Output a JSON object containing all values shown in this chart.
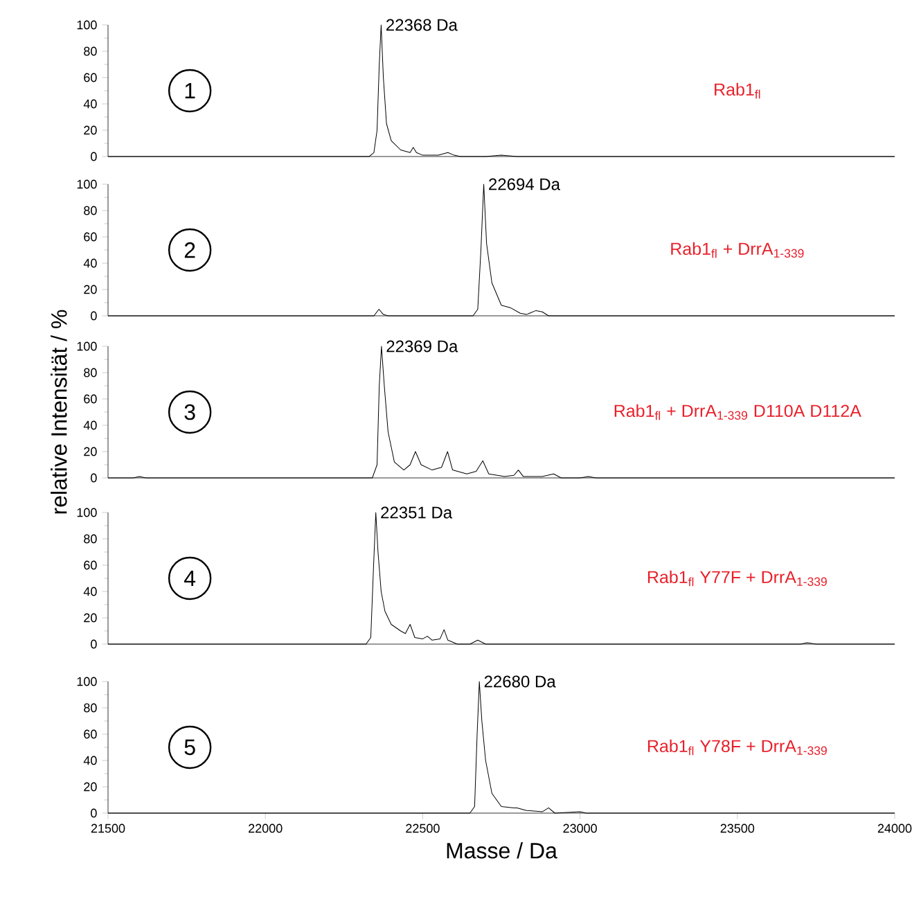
{
  "chart_data": [
    {
      "type": "line",
      "xlim": [
        21500,
        24000
      ],
      "ylim": [
        0,
        100
      ],
      "yticks": [
        0,
        20,
        40,
        60,
        80,
        100
      ],
      "tick_labels": "y",
      "x": [
        21500,
        22330,
        22345,
        22355,
        22362,
        22368,
        22375,
        22385,
        22400,
        22430,
        22460,
        22470,
        22480,
        22500,
        22550,
        22580,
        22600,
        22620,
        22700,
        22750,
        22800,
        24000
      ],
      "values": [
        0,
        0,
        3,
        20,
        70,
        100,
        60,
        25,
        12,
        5,
        3,
        7,
        3,
        1,
        1,
        3,
        1,
        0,
        0,
        1,
        0,
        0
      ],
      "annotations": [
        "1",
        "Rab1$_{fl}$",
        {
          "text": "22368 Da",
          "x": 22368,
          "y": 100
        }
      ]
    },
    {
      "type": "line",
      "xlim": [
        21500,
        24000
      ],
      "ylim": [
        0,
        100
      ],
      "yticks": [
        0,
        20,
        40,
        60,
        80,
        100
      ],
      "tick_labels": "y",
      "x": [
        21500,
        22345,
        22361,
        22375,
        22390,
        22660,
        22675,
        22685,
        22694,
        22703,
        22720,
        22750,
        22780,
        22810,
        22830,
        22860,
        22880,
        22900,
        24000
      ],
      "values": [
        0,
        0,
        5,
        1,
        0,
        0,
        5,
        50,
        100,
        55,
        25,
        8,
        6,
        2,
        1,
        4,
        3,
        0,
        0
      ],
      "annotations": [
        "2",
        "Rab1$_{fl}$ + DrrA$_{1-339}$",
        {
          "text": "22694 Da",
          "x": 22694,
          "y": 100
        }
      ]
    },
    {
      "type": "line",
      "xlim": [
        21500,
        24000
      ],
      "ylim": [
        0,
        100
      ],
      "yticks": [
        0,
        20,
        40,
        60,
        80,
        100
      ],
      "tick_labels": "y",
      "ylabel": "relative Intensität / %",
      "x": [
        21500,
        21580,
        21600,
        21620,
        22340,
        22355,
        22362,
        22369,
        22378,
        22390,
        22410,
        22440,
        22460,
        22477,
        22495,
        22530,
        22560,
        22579,
        22595,
        22640,
        22670,
        22691,
        22710,
        22760,
        22790,
        22804,
        22820,
        22880,
        22916,
        22940,
        23000,
        23027,
        23050,
        24000
      ],
      "values": [
        0,
        0,
        1,
        0,
        0,
        10,
        70,
        100,
        70,
        35,
        12,
        6,
        10,
        20,
        10,
        6,
        8,
        20,
        6,
        3,
        5,
        13,
        3,
        1,
        2,
        6,
        1,
        1,
        3,
        0,
        0,
        1,
        0,
        0
      ],
      "annotations": [
        "3",
        "Rab1$_{fl}$ + DrrA$_{1-339}$ D110A D112A",
        {
          "text": "22369 Da",
          "x": 22369,
          "y": 100
        }
      ]
    },
    {
      "type": "line",
      "xlim": [
        21500,
        24000
      ],
      "ylim": [
        0,
        100
      ],
      "yticks": [
        0,
        20,
        40,
        60,
        80,
        100
      ],
      "tick_labels": "y",
      "x": [
        21500,
        22320,
        22335,
        22344,
        22351,
        22358,
        22368,
        22380,
        22400,
        22430,
        22445,
        22460,
        22475,
        22500,
        22515,
        22530,
        22555,
        22568,
        22580,
        22610,
        22650,
        22675,
        22700,
        23700,
        23722,
        23750,
        24000
      ],
      "values": [
        0,
        0,
        5,
        60,
        100,
        70,
        40,
        25,
        15,
        10,
        8,
        15,
        5,
        4,
        6,
        3,
        4,
        11,
        3,
        0,
        0,
        3,
        0,
        0,
        1,
        0,
        0
      ],
      "annotations": [
        "4",
        "Rab1$_{fl}$ Y77F + DrrA$_{1-339}$",
        {
          "text": "22351 Da",
          "x": 22351,
          "y": 100
        }
      ]
    },
    {
      "type": "line",
      "xlim": [
        21500,
        24000
      ],
      "ylim": [
        0,
        100
      ],
      "yticks": [
        0,
        20,
        40,
        60,
        80,
        100
      ],
      "xticks": [
        21500,
        22000,
        22500,
        23000,
        23500,
        24000
      ],
      "xlabel": "Masse / Da",
      "x": [
        21500,
        22650,
        22665,
        22673,
        22680,
        22688,
        22700,
        22720,
        22750,
        22790,
        22800,
        22830,
        22880,
        22900,
        22920,
        23000,
        23020,
        24000
      ],
      "values": [
        0,
        0,
        5,
        60,
        100,
        70,
        40,
        15,
        5,
        4,
        4,
        2,
        1,
        4,
        0,
        1,
        0,
        0
      ],
      "annotations": [
        "5",
        "Rab1$_{fl}$ Y78F + DrrA$_{1-339}$",
        {
          "text": "22680 Da",
          "x": 22680,
          "y": 100
        }
      ]
    }
  ]
}
